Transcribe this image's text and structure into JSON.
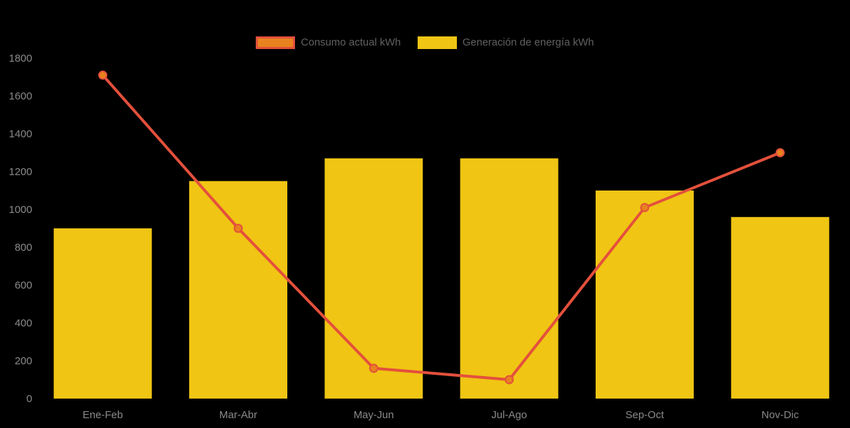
{
  "page": {
    "background": "#000000"
  },
  "legend": {
    "position": "top",
    "text_color": "#606060",
    "items": [
      {
        "label": "Consumo actual kWh",
        "type": "line",
        "swatch_fill": "#E8821E",
        "swatch_border": "#E4503C"
      },
      {
        "label": "Generación de energía kWh",
        "type": "bar",
        "swatch_fill": "#F0C514",
        "swatch_border": "#F0C514"
      }
    ]
  },
  "chart_data": {
    "type": "bar+line",
    "title": "",
    "xlabel": "",
    "ylabel": "",
    "categories": [
      "Ene-Feb",
      "Mar-Abr",
      "May-Jun",
      "Jul-Ago",
      "Sep-Oct",
      "Nov-Dic"
    ],
    "series": [
      {
        "name": "Consumo actual kWh",
        "type": "line",
        "values": [
          1710,
          900,
          160,
          100,
          1010,
          1300
        ],
        "color": "#E4503C",
        "point_fill": "#E8821E"
      },
      {
        "name": "Generación de energía kWh",
        "type": "bar",
        "values": [
          900,
          1150,
          1270,
          1270,
          1100,
          960
        ],
        "color": "#F0C514"
      }
    ],
    "ylim": [
      0,
      1800
    ],
    "ytick_step": 200,
    "ytick_labels": [
      "0",
      "200",
      "400",
      "600",
      "800",
      "1000",
      "1200",
      "1400",
      "1600",
      "1800"
    ],
    "grid": false,
    "legend_position": "top",
    "axis_text_color": "#8A8A8A"
  }
}
